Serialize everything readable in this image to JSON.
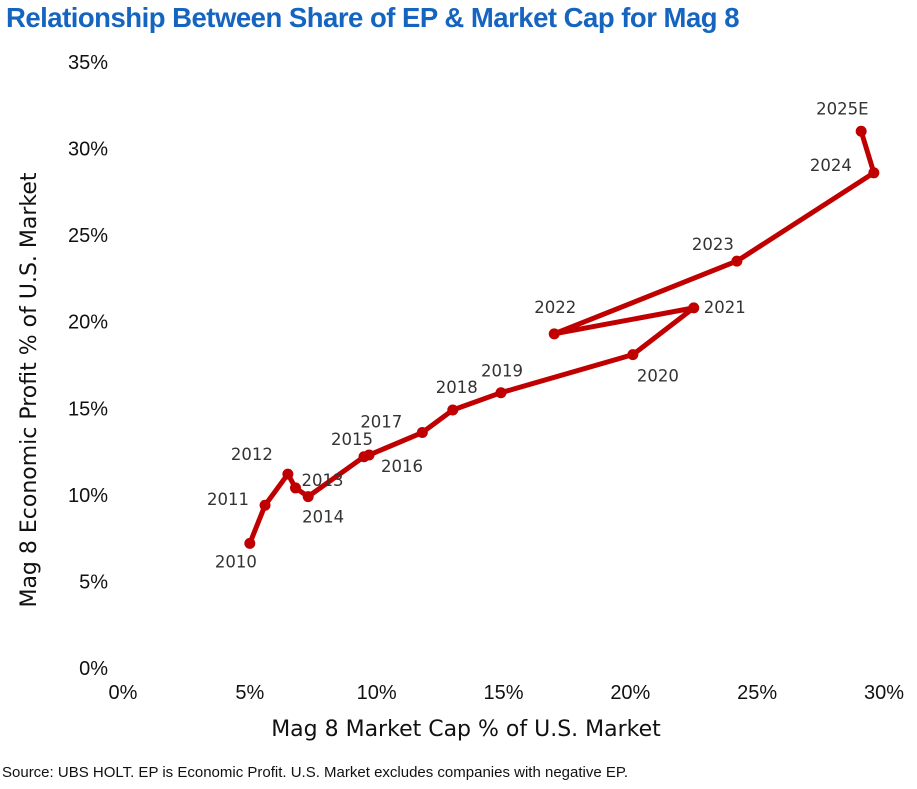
{
  "chart_data": {
    "type": "line",
    "title": "Relationship Between Share of EP & Market Cap for Mag 8",
    "xlabel": "Mag 8 Market Cap % of U.S. Market",
    "ylabel": "Mag 8 Economic Profit % of U.S. Market",
    "xlim": [
      0,
      30
    ],
    "ylim": [
      0,
      35
    ],
    "x_ticks": [
      "0%",
      "5%",
      "10%",
      "15%",
      "20%",
      "25%",
      "30%"
    ],
    "y_ticks": [
      "0%",
      "5%",
      "10%",
      "15%",
      "20%",
      "25%",
      "30%",
      "35%"
    ],
    "grid": false,
    "line_color": "#c00000",
    "points": [
      {
        "label": "2010",
        "x": 5.0,
        "y": 7.2
      },
      {
        "label": "2011",
        "x": 5.6,
        "y": 9.4
      },
      {
        "label": "2012",
        "x": 6.5,
        "y": 11.2
      },
      {
        "label": "2013",
        "x": 6.8,
        "y": 10.4
      },
      {
        "label": "2014",
        "x": 7.3,
        "y": 9.9
      },
      {
        "label": "2015",
        "x": 9.5,
        "y": 12.2
      },
      {
        "label": "2016",
        "x": 9.7,
        "y": 12.3
      },
      {
        "label": "2017",
        "x": 11.8,
        "y": 13.6
      },
      {
        "label": "2018",
        "x": 13.0,
        "y": 14.9
      },
      {
        "label": "2019",
        "x": 14.9,
        "y": 15.9
      },
      {
        "label": "2020",
        "x": 20.1,
        "y": 18.1
      },
      {
        "label": "2021",
        "x": 22.5,
        "y": 20.8
      },
      {
        "label": "2022",
        "x": 17.0,
        "y": 19.3
      },
      {
        "label": "2023",
        "x": 24.2,
        "y": 23.5
      },
      {
        "label": "2024",
        "x": 29.6,
        "y": 28.6
      },
      {
        "label": "2025E",
        "x": 29.1,
        "y": 31.0
      }
    ]
  },
  "footer": {
    "source": "Source: UBS HOLT. EP is Economic Profit. U.S. Market excludes companies with negative EP."
  }
}
